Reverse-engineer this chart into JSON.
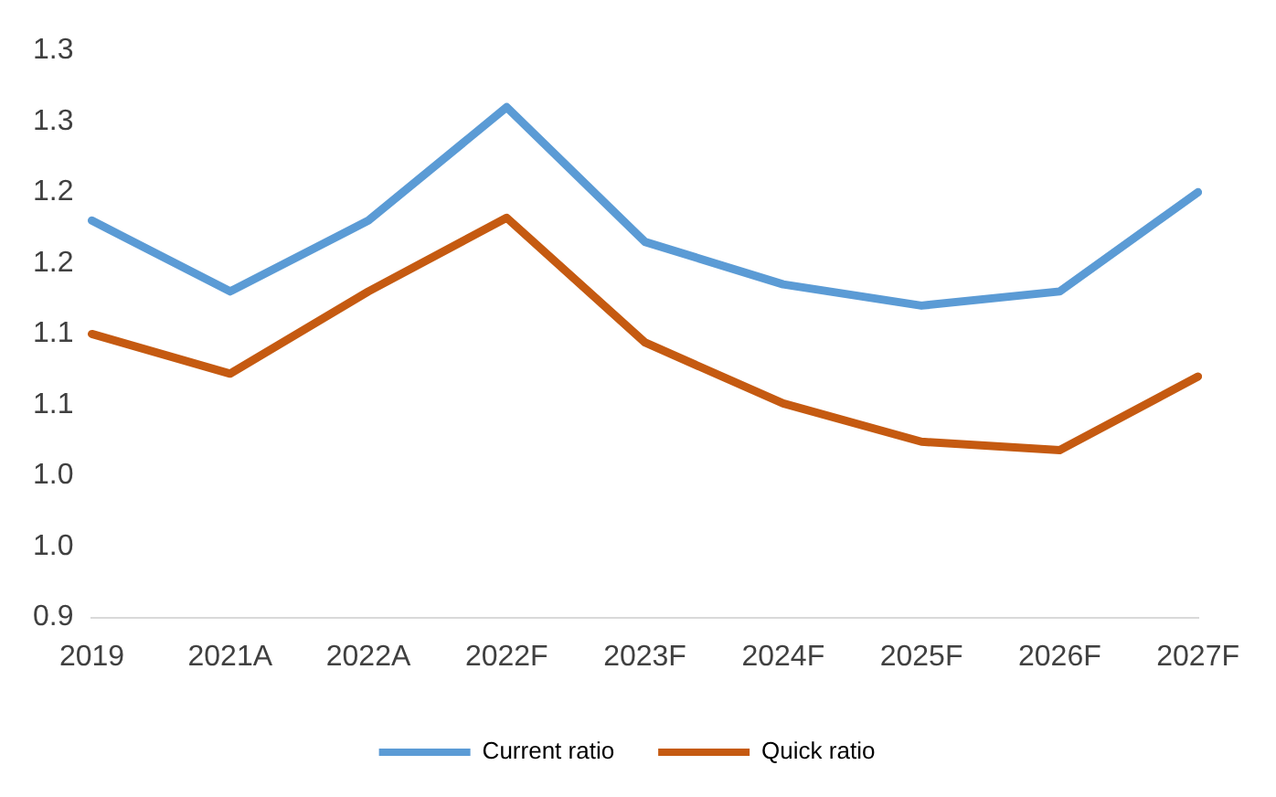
{
  "chart_data": {
    "type": "line",
    "categories": [
      "2019",
      "2021A",
      "2022A",
      "2022F",
      "2023F",
      "2024F",
      "2025F",
      "2026F",
      "2027F"
    ],
    "series": [
      {
        "name": "Current ratio",
        "color": "#5b9bd5",
        "values": [
          1.18,
          1.13,
          1.18,
          1.26,
          1.165,
          1.135,
          1.12,
          1.13,
          1.2
        ]
      },
      {
        "name": "Quick ratio",
        "color": "#c55a11",
        "values": [
          1.1,
          1.072,
          1.13,
          1.182,
          1.094,
          1.051,
          1.024,
          1.018,
          1.07
        ]
      }
    ],
    "ylim": [
      0.9,
      1.3
    ],
    "yticks": [
      {
        "value": 0.9,
        "label": "0.9"
      },
      {
        "value": 0.95,
        "label": "1.0"
      },
      {
        "value": 1.0,
        "label": "1.0"
      },
      {
        "value": 1.05,
        "label": "1.1"
      },
      {
        "value": 1.1,
        "label": "1.1"
      },
      {
        "value": 1.15,
        "label": "1.2"
      },
      {
        "value": 1.2,
        "label": "1.2"
      },
      {
        "value": 1.25,
        "label": "1.3"
      },
      {
        "value": 1.3,
        "label": "1.3"
      }
    ],
    "grid": false,
    "legend": "bottom",
    "marker": "none",
    "line_style": "solid"
  }
}
